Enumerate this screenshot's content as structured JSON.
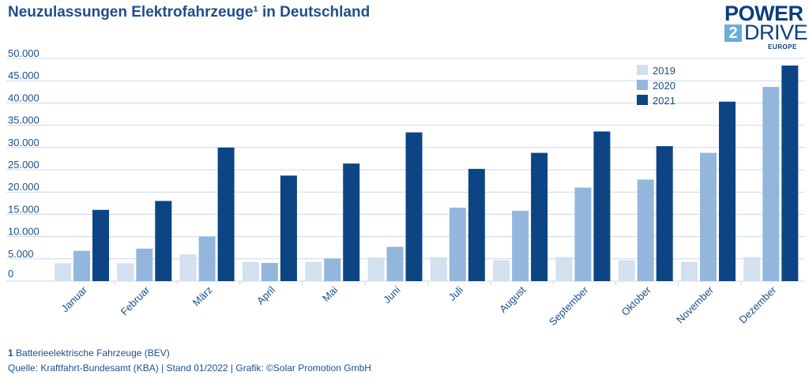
{
  "title": "Neuzulassungen Elektrofahrzeuge¹ in Deutschland",
  "logo": {
    "line1": "POWER",
    "badge": "2",
    "line2": "DRIVE",
    "line3": "EUROPE"
  },
  "footnote": {
    "number": "1",
    "text": "Batterieelektrische Fahrzeuge (BEV)"
  },
  "source": "Quelle: Kraftfahrt-Bundesamt (KBA) | Stand 01/2022 | Grafik: ©Solar Promotion GmbH",
  "colors": {
    "s2019": "#d3e0ef",
    "s2020": "#93b6dd",
    "s2021": "#0d4484",
    "grid": "#c9d9ea",
    "text": "#1f4e8c"
  },
  "chart_data": {
    "type": "bar",
    "title": "Neuzulassungen Elektrofahrzeuge¹ in Deutschland",
    "xlabel": "",
    "ylabel": "",
    "ylim": [
      0,
      50000
    ],
    "yticks": [
      0,
      5000,
      10000,
      15000,
      20000,
      25000,
      30000,
      35000,
      40000,
      45000,
      50000
    ],
    "ytick_labels": [
      "0",
      "5.000",
      "10.000",
      "15.000",
      "20.000",
      "25.000",
      "30.000",
      "35.000",
      "40.000",
      "45.000",
      "50.000"
    ],
    "grid": true,
    "legend": "top-right",
    "categories": [
      "Januar",
      "Februar",
      "März",
      "April",
      "Mai",
      "Juni",
      "Juli",
      "August",
      "September",
      "Oktober",
      "November",
      "Dezember"
    ],
    "series": [
      {
        "name": "2019",
        "values": [
          4000,
          4000,
          6000,
          4300,
          4300,
          5300,
          5400,
          4700,
          5400,
          4700,
          4300,
          5400
        ]
      },
      {
        "name": "2020",
        "values": [
          6800,
          7300,
          10000,
          4100,
          5100,
          7700,
          16500,
          15800,
          21000,
          22800,
          28800,
          43600
        ]
      },
      {
        "name": "2021",
        "values": [
          16000,
          18000,
          30000,
          23700,
          26400,
          33400,
          25200,
          28800,
          33600,
          30300,
          40300,
          48400
        ]
      }
    ]
  }
}
